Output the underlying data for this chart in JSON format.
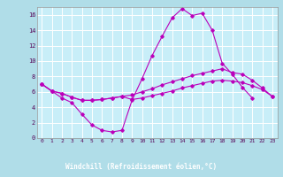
{
  "background_color": "#b0dde8",
  "plot_bg_color": "#c8eef8",
  "grid_color": "#ffffff",
  "line_color": "#bb00bb",
  "xlabel": "Windchill (Refroidissement éolien,°C)",
  "xlabel_bg": "#440044",
  "xlim": [
    -0.5,
    23.5
  ],
  "ylim": [
    0,
    17
  ],
  "xticks": [
    0,
    1,
    2,
    3,
    4,
    5,
    6,
    7,
    8,
    9,
    10,
    11,
    12,
    13,
    14,
    15,
    16,
    17,
    18,
    19,
    20,
    21,
    22,
    23
  ],
  "yticks": [
    0,
    2,
    4,
    6,
    8,
    10,
    12,
    14,
    16
  ],
  "series": [
    {
      "x": [
        0,
        1,
        2,
        3,
        4,
        5,
        6,
        7,
        8,
        9,
        10,
        11,
        12,
        13,
        14,
        15,
        16,
        17,
        18,
        19,
        20,
        21
      ],
      "y": [
        7.0,
        6.1,
        5.2,
        4.6,
        3.1,
        1.7,
        1.0,
        0.8,
        1.0,
        4.9,
        7.7,
        10.7,
        13.2,
        15.6,
        16.8,
        15.9,
        16.2,
        14.0,
        9.7,
        8.3,
        6.6,
        5.2
      ]
    },
    {
      "x": [
        0,
        1,
        2,
        3,
        4,
        5,
        6,
        7,
        8,
        9,
        10,
        11,
        12,
        13,
        14,
        15,
        16,
        17,
        18,
        19,
        20,
        21,
        22,
        23
      ],
      "y": [
        7.0,
        6.1,
        5.8,
        5.3,
        4.9,
        4.9,
        5.0,
        5.2,
        5.4,
        5.6,
        6.0,
        6.4,
        6.9,
        7.3,
        7.7,
        8.1,
        8.4,
        8.7,
        9.0,
        8.5,
        8.3,
        7.5,
        6.5,
        5.4
      ]
    },
    {
      "x": [
        0,
        1,
        2,
        3,
        4,
        5,
        6,
        7,
        8,
        9,
        10,
        11,
        12,
        13,
        14,
        15,
        16,
        17,
        18,
        19,
        20,
        21,
        22,
        23
      ],
      "y": [
        7.0,
        6.1,
        5.8,
        5.3,
        4.9,
        4.9,
        5.0,
        5.2,
        5.4,
        5.0,
        5.2,
        5.5,
        5.8,
        6.1,
        6.5,
        6.8,
        7.1,
        7.4,
        7.5,
        7.4,
        7.2,
        6.8,
        6.3,
        5.4
      ]
    }
  ]
}
